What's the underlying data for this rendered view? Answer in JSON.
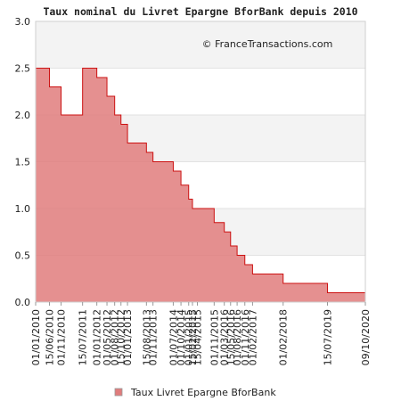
{
  "chart_data": {
    "type": "area",
    "title": "Taux nominal du Livret Epargne BforBank depuis 2010",
    "watermark": "© FranceTransactions.com",
    "xlabel": "",
    "ylabel": "",
    "ylim": [
      0,
      3.0
    ],
    "y_ticks": [
      "0.0",
      "0.5",
      "1.0",
      "1.5",
      "2.0",
      "2.5",
      "3.0"
    ],
    "step": "post",
    "x_start": "2010-01-01",
    "x_end": "2020-10-09",
    "x_tick_labels": [
      "01/01/2010",
      "15/06/2010",
      "01/11/2010",
      "15/07/2011",
      "01/01/2012",
      "01/05/2012",
      "01/08/2012",
      "15/10/2012",
      "01/01/2013",
      "15/08/2013",
      "01/11/2013",
      "01/07/2014",
      "01/10/2014",
      "01/01/2015",
      "15/02/2015",
      "15/04/2015",
      "01/11/2015",
      "01/03/2016",
      "15/05/2016",
      "01/08/2016",
      "01/11/2016",
      "01/02/2017",
      "01/02/2018",
      "15/07/2019",
      "09/10/2020"
    ],
    "series": [
      {
        "name": "Taux Livret Epargne BforBank",
        "color": "#e07c7c",
        "line_color": "#cc1111",
        "points": [
          {
            "x": "2010-01-01",
            "y": 2.5
          },
          {
            "x": "2010-06-15",
            "y": 2.3
          },
          {
            "x": "2010-11-01",
            "y": 2.0
          },
          {
            "x": "2011-07-15",
            "y": 2.5
          },
          {
            "x": "2012-01-01",
            "y": 2.4
          },
          {
            "x": "2012-05-01",
            "y": 2.2
          },
          {
            "x": "2012-08-01",
            "y": 2.0
          },
          {
            "x": "2012-10-15",
            "y": 1.9
          },
          {
            "x": "2013-01-01",
            "y": 1.7
          },
          {
            "x": "2013-08-15",
            "y": 1.6
          },
          {
            "x": "2013-11-01",
            "y": 1.5
          },
          {
            "x": "2014-07-01",
            "y": 1.4
          },
          {
            "x": "2014-10-01",
            "y": 1.25
          },
          {
            "x": "2015-01-01",
            "y": 1.1
          },
          {
            "x": "2015-02-15",
            "y": 1.0
          },
          {
            "x": "2015-04-15",
            "y": 1.0
          },
          {
            "x": "2015-11-01",
            "y": 0.85
          },
          {
            "x": "2016-03-01",
            "y": 0.75
          },
          {
            "x": "2016-05-15",
            "y": 0.6
          },
          {
            "x": "2016-08-01",
            "y": 0.5
          },
          {
            "x": "2016-11-01",
            "y": 0.4
          },
          {
            "x": "2017-02-01",
            "y": 0.3
          },
          {
            "x": "2018-02-01",
            "y": 0.2
          },
          {
            "x": "2019-07-15",
            "y": 0.1
          },
          {
            "x": "2020-10-09",
            "y": 0.1
          }
        ]
      }
    ],
    "legend_position": "bottom",
    "grid": true
  }
}
